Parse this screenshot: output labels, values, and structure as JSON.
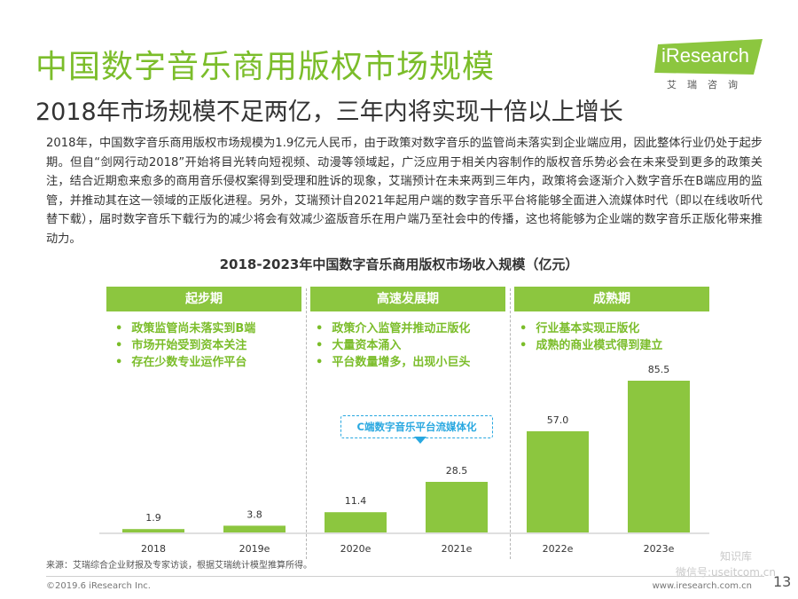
{
  "title": "中国数字音乐商用版权市场规模",
  "subtitle": "2018年市场规模不足两亿，三年内将实现十倍以上增长",
  "logo": {
    "text": "iResearch",
    "sub": "艾瑞咨询",
    "color": "#8cc63f"
  },
  "paragraph": "2018年，中国数字音乐商用版权市场规模为1.9亿元人民币，由于政策对数字音乐的监管尚未落实到企业端应用，因此整体行业仍处于起步期。但自“剑网行动2018”开始将目光转向短视频、动漫等领域起，广泛应用于相关内容制作的版权音乐势必会在未来受到更多的政策关注，结合近期愈来愈多的商用音乐侵权案得到受理和胜诉的现象，艾瑞预计在未来两到三年内，政策将会逐渐介入数字音乐在B端应用的监管，并推动其在这一领域的正版化进程。另外，艾瑞预计自2021年起用户端的数字音乐平台将能够全面进入流媒体时代（即以在线收听代替下载），届时数字音乐下载行为的减少将会有效减少盗版音乐在用户端乃至社会中的传播，这也将能够为企业端的数字音乐正版化带来推动力。",
  "phases": [
    {
      "label": "起步期",
      "points": [
        "政策监管尚未落实到B端",
        "市场开始受到资本关注",
        "存在少数专业运作平台"
      ]
    },
    {
      "label": "高速发展期",
      "points": [
        "政策介入监管并推动正版化",
        "大量资本涌入",
        "平台数量增多，出现小巨头"
      ]
    },
    {
      "label": "成熟期",
      "points": [
        "行业基本实现正版化",
        "成熟的商业模式得到建立"
      ]
    }
  ],
  "callout": "C端数字音乐平台流媒体化",
  "chart_data": {
    "type": "bar",
    "title": "2018-2023年中国数字音乐商用版权市场收入规模（亿元）",
    "categories": [
      "2018",
      "2019e",
      "2020e",
      "2021e",
      "2022e",
      "2023e"
    ],
    "values": [
      1.9,
      3.8,
      11.4,
      28.5,
      57.0,
      85.5
    ],
    "value_labels": [
      "1.9",
      "3.8",
      "11.4",
      "28.5",
      "57.0",
      "85.5"
    ],
    "bar_color": "#8cc63f",
    "grid": false,
    "legend": "none"
  },
  "source": "来源：艾瑞综合企业财报及专家访谈，根据艾瑞统计模型推算所得。",
  "watermark": {
    "brand": "知识库",
    "account": "微信号:useitcom.cn"
  },
  "footer": {
    "copyright": "©2019.6 iResearch Inc.",
    "website": "www.iresearch.com.cn",
    "page": "13"
  }
}
